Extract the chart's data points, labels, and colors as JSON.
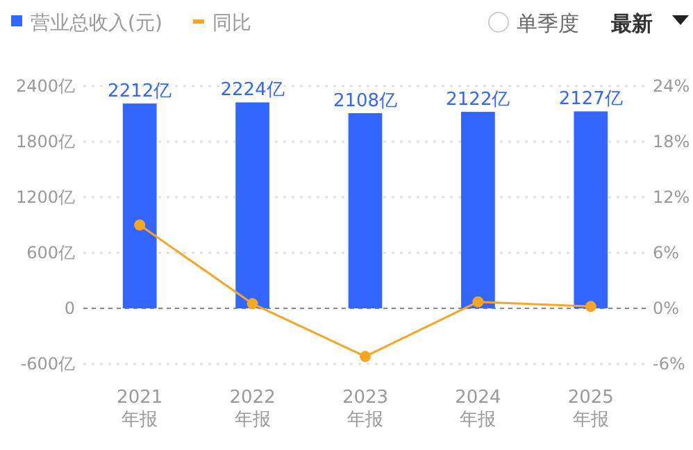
{
  "chart_data": {
    "type": "bar",
    "categories": [
      "2021\n年报",
      "2022\n年报",
      "2023\n年报",
      "2024\n年报",
      "2025\n年报"
    ],
    "series": [
      {
        "name": "营业总收入(元)",
        "color": "#3366ff",
        "values": [
          2212,
          2224,
          2108,
          2122,
          2127
        ],
        "value_labels": [
          "2212亿",
          "2224亿",
          "2108亿",
          "2122亿",
          "2127亿"
        ]
      },
      {
        "name": "同比",
        "type": "line",
        "axis": "y2",
        "color": "#f5a623",
        "values": [
          9.0,
          0.5,
          -5.2,
          0.7,
          0.2
        ]
      }
    ],
    "ylim": [
      -600,
      2400
    ],
    "yticks": [
      {
        "value": -600,
        "label": "-600亿"
      },
      0,
      {
        "value": 600,
        "label": "600亿"
      },
      {
        "value": 1200,
        "label": "1200亿"
      },
      {
        "value": 1800,
        "label": "1800亿"
      },
      {
        "value": 2400,
        "label": "2400亿"
      }
    ],
    "y2lim": [
      -6,
      24
    ],
    "y2ticks": [
      {
        "value": -6,
        "label": "-6%"
      },
      {
        "value": 0,
        "label": "0%"
      },
      {
        "value": 6,
        "label": "6%"
      },
      {
        "value": 12,
        "label": "12%"
      },
      {
        "value": 18,
        "label": "18%"
      },
      {
        "value": 24,
        "label": "24%"
      }
    ],
    "ref_lines": [
      {
        "axis": "y",
        "value": 0,
        "color": "#888888",
        "line_style": "dashed"
      }
    ],
    "grid": "y",
    "legend": "top left",
    "marker": "circle",
    "annotations": [
      "单季度",
      "最新"
    ]
  }
}
